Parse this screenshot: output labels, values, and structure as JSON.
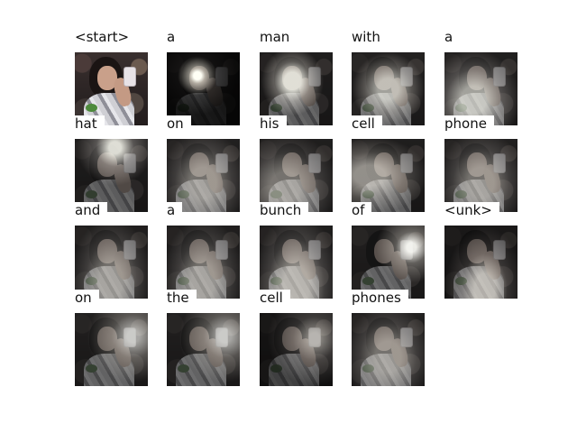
{
  "panels": [
    {
      "word": "<start>",
      "type": "image"
    },
    {
      "word": "a",
      "type": "attention",
      "spot": "face-sharp"
    },
    {
      "word": "man",
      "type": "attention",
      "spot": "face"
    },
    {
      "word": "with",
      "type": "attention",
      "spot": "center-wide"
    },
    {
      "word": "a",
      "type": "attention",
      "spot": "center-low"
    },
    {
      "word": "hat",
      "type": "attention",
      "spot": "head-top"
    },
    {
      "word": "on",
      "type": "attention",
      "spot": "diffuse"
    },
    {
      "word": "his",
      "type": "attention",
      "spot": "diffuse-left"
    },
    {
      "word": "cell",
      "type": "attention",
      "spot": "phone-left"
    },
    {
      "word": "phone",
      "type": "attention",
      "spot": "diffuse"
    },
    {
      "word": "and",
      "type": "attention",
      "spot": "diffuse-low"
    },
    {
      "word": "a",
      "type": "attention",
      "spot": "diffuse-low"
    },
    {
      "word": "bunch",
      "type": "attention",
      "spot": "bottom"
    },
    {
      "word": "of",
      "type": "attention",
      "spot": "phone"
    },
    {
      "word": "<unk>",
      "type": "attention",
      "spot": "bottom-dark"
    },
    {
      "word": "on",
      "type": "attention",
      "spot": "phone-soft"
    },
    {
      "word": "the",
      "type": "attention",
      "spot": "phone-soft"
    },
    {
      "word": "cell",
      "type": "attention",
      "spot": "phone-dark"
    },
    {
      "word": "phones",
      "type": "attention",
      "spot": "diffuse"
    }
  ]
}
